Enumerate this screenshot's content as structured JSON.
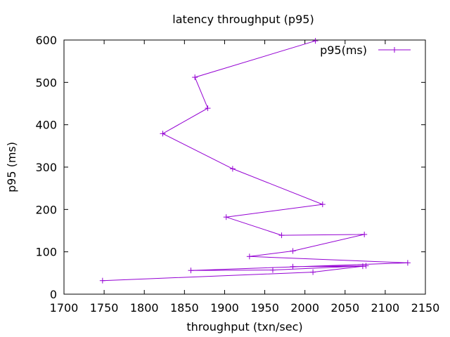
{
  "chart_data": {
    "type": "line",
    "title": "latency throughput (p95)",
    "xlabel": "throughput (txn/sec)",
    "ylabel": "p95 (ms)",
    "xlim": [
      1700,
      2150
    ],
    "ylim": [
      0,
      600
    ],
    "xticks": [
      1700,
      1750,
      1800,
      1850,
      1900,
      1950,
      2000,
      2050,
      2100,
      2150
    ],
    "yticks": [
      0,
      100,
      200,
      300,
      400,
      500,
      600
    ],
    "grid": false,
    "legend": "top-right",
    "color": "#9400d3",
    "series": [
      {
        "name": "p95(ms)",
        "marker": "plus",
        "points": [
          [
            2013,
            598
          ],
          [
            1863,
            512
          ],
          [
            1879,
            439
          ],
          [
            1823,
            379
          ],
          [
            1910,
            296
          ],
          [
            2022,
            212
          ],
          [
            1902,
            182
          ],
          [
            1971,
            139
          ],
          [
            2074,
            141
          ],
          [
            1985,
            102
          ],
          [
            1931,
            89
          ],
          [
            2128,
            74
          ],
          [
            1858,
            56
          ],
          [
            1960,
            57
          ],
          [
            2076,
            67
          ],
          [
            1985,
            65
          ],
          [
            2072,
            66
          ],
          [
            2010,
            52
          ],
          [
            1748,
            32
          ]
        ]
      }
    ]
  }
}
